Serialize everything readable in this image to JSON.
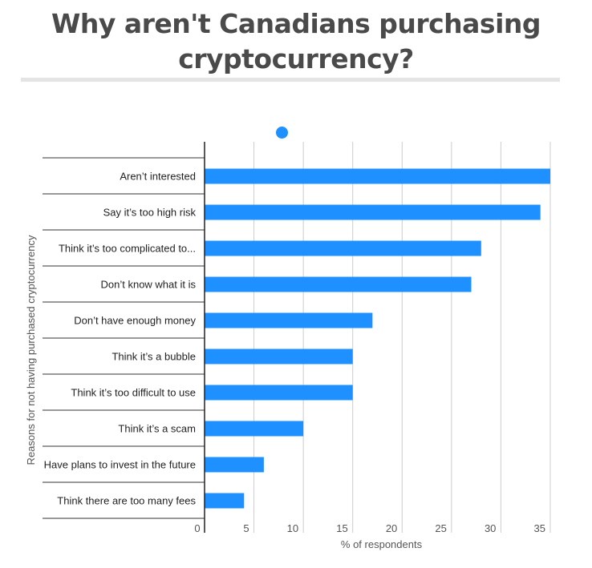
{
  "chart_data": {
    "type": "bar",
    "orientation": "horizontal",
    "title": "Why aren't Canadians purchasing cryptocurrency?",
    "xlabel": "% of respondents",
    "ylabel": "Reasons for not having purchased cryptocurrency",
    "categories": [
      "Aren’t interested",
      "Say it’s too high risk",
      "Think it’s too complicated to...",
      "Don’t know what it is",
      "Don’t have enough money",
      "Think it’s a bubble",
      "Think it’s too difficult to use",
      "Think it’s a scam",
      "Have plans to invest in the future",
      "Think there are too many fees"
    ],
    "values": [
      35,
      34,
      28,
      27,
      17,
      15,
      15,
      10,
      6,
      4
    ],
    "xlim": [
      0,
      35
    ],
    "xticks": [
      0,
      5,
      10,
      15,
      20,
      25,
      30,
      35
    ],
    "grid": true,
    "bar_color": "#1e90ff"
  }
}
